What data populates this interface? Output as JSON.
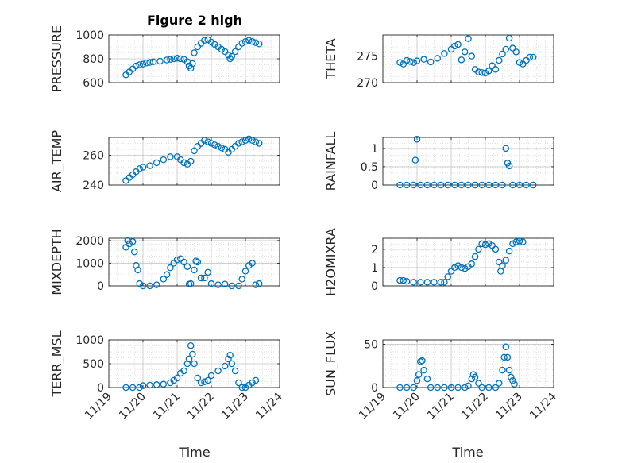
{
  "figure": {
    "title": "Figure 2 high",
    "xlabel": "Time"
  },
  "style": {
    "marker_color": "#0072BD",
    "grid_color": "#d9d9d9",
    "axis_color": "#262626"
  },
  "chart_data": [
    {
      "id": "pressure",
      "type": "scatter",
      "ylabel": "PRESSURE",
      "xlim": [
        "11/19",
        "11/24"
      ],
      "ylim": [
        600,
        1000
      ],
      "yticks": [
        600,
        800,
        1000
      ],
      "xticks": [
        "11/19",
        "11/20",
        "11/21",
        "11/22",
        "11/23",
        "11/24"
      ],
      "points": [
        [
          19.5,
          665
        ],
        [
          19.6,
          690
        ],
        [
          19.7,
          715
        ],
        [
          19.8,
          740
        ],
        [
          19.9,
          750
        ],
        [
          20.0,
          755
        ],
        [
          20.1,
          765
        ],
        [
          20.2,
          770
        ],
        [
          20.3,
          775
        ],
        [
          20.5,
          780
        ],
        [
          20.7,
          790
        ],
        [
          20.8,
          795
        ],
        [
          20.9,
          800
        ],
        [
          21.0,
          805
        ],
        [
          21.1,
          800
        ],
        [
          21.2,
          795
        ],
        [
          21.3,
          775
        ],
        [
          21.35,
          740
        ],
        [
          21.4,
          720
        ],
        [
          21.45,
          760
        ],
        [
          21.5,
          850
        ],
        [
          21.6,
          900
        ],
        [
          21.7,
          930
        ],
        [
          21.8,
          955
        ],
        [
          21.9,
          960
        ],
        [
          22.0,
          940
        ],
        [
          22.1,
          920
        ],
        [
          22.2,
          900
        ],
        [
          22.3,
          880
        ],
        [
          22.4,
          860
        ],
        [
          22.5,
          830
        ],
        [
          22.55,
          800
        ],
        [
          22.6,
          820
        ],
        [
          22.7,
          860
        ],
        [
          22.8,
          900
        ],
        [
          22.9,
          930
        ],
        [
          23.0,
          945
        ],
        [
          23.1,
          955
        ],
        [
          23.2,
          945
        ],
        [
          23.3,
          935
        ],
        [
          23.4,
          925
        ]
      ]
    },
    {
      "id": "theta",
      "type": "scatter",
      "ylabel": "THETA",
      "xlim": [
        "11/19",
        "11/24"
      ],
      "ylim": [
        270,
        279
      ],
      "yticks": [
        270,
        275
      ],
      "xticks": [
        "11/19",
        "11/20",
        "11/21",
        "11/22",
        "11/23",
        "11/24"
      ],
      "points": [
        [
          19.5,
          273.8
        ],
        [
          19.6,
          273.5
        ],
        [
          19.7,
          274.2
        ],
        [
          19.8,
          274.0
        ],
        [
          19.9,
          273.8
        ],
        [
          20.0,
          274.1
        ],
        [
          20.2,
          274.4
        ],
        [
          20.4,
          273.9
        ],
        [
          20.6,
          274.6
        ],
        [
          20.8,
          275.5
        ],
        [
          21.0,
          276.3
        ],
        [
          21.1,
          276.9
        ],
        [
          21.2,
          277.2
        ],
        [
          21.3,
          274.3
        ],
        [
          21.4,
          275.8
        ],
        [
          21.5,
          278.3
        ],
        [
          21.6,
          275.0
        ],
        [
          21.7,
          272.5
        ],
        [
          21.8,
          272.0
        ],
        [
          21.9,
          271.9
        ],
        [
          22.0,
          271.8
        ],
        [
          22.1,
          272.2
        ],
        [
          22.2,
          273.2
        ],
        [
          22.3,
          272.5
        ],
        [
          22.4,
          274.2
        ],
        [
          22.5,
          275.4
        ],
        [
          22.6,
          276.3
        ],
        [
          22.7,
          278.4
        ],
        [
          22.8,
          276.5
        ],
        [
          22.9,
          275.8
        ],
        [
          23.0,
          273.8
        ],
        [
          23.1,
          273.5
        ],
        [
          23.2,
          274.2
        ],
        [
          23.3,
          274.8
        ],
        [
          23.4,
          274.8
        ]
      ]
    },
    {
      "id": "air_temp",
      "type": "scatter",
      "ylabel": "AIR_TEMP",
      "xlim": [
        "11/19",
        "11/24"
      ],
      "ylim": [
        240,
        272
      ],
      "yticks": [
        240,
        260
      ],
      "xticks": [
        "11/19",
        "11/20",
        "11/21",
        "11/22",
        "11/23",
        "11/24"
      ],
      "points": [
        [
          19.5,
          243
        ],
        [
          19.6,
          245
        ],
        [
          19.7,
          247
        ],
        [
          19.8,
          249
        ],
        [
          19.9,
          251
        ],
        [
          20.0,
          252
        ],
        [
          20.2,
          253
        ],
        [
          20.4,
          255
        ],
        [
          20.6,
          257
        ],
        [
          20.8,
          259
        ],
        [
          21.0,
          259
        ],
        [
          21.1,
          257
        ],
        [
          21.2,
          255
        ],
        [
          21.3,
          254
        ],
        [
          21.4,
          256
        ],
        [
          21.5,
          263
        ],
        [
          21.6,
          266
        ],
        [
          21.7,
          268
        ],
        [
          21.8,
          270
        ],
        [
          21.9,
          269
        ],
        [
          22.0,
          268
        ],
        [
          22.1,
          267
        ],
        [
          22.2,
          266
        ],
        [
          22.3,
          265
        ],
        [
          22.4,
          264
        ],
        [
          22.5,
          262
        ],
        [
          22.6,
          264
        ],
        [
          22.7,
          266
        ],
        [
          22.8,
          268
        ],
        [
          22.9,
          269
        ],
        [
          23.0,
          270
        ],
        [
          23.1,
          271
        ],
        [
          23.2,
          270
        ],
        [
          23.3,
          269
        ],
        [
          23.4,
          268
        ]
      ]
    },
    {
      "id": "rainfall",
      "type": "scatter",
      "ylabel": "RAINFALL",
      "xlim": [
        "11/19",
        "11/24"
      ],
      "ylim": [
        0,
        1.3
      ],
      "yticks": [
        0,
        0.5,
        1
      ],
      "xticks": [
        "11/19",
        "11/20",
        "11/21",
        "11/22",
        "11/23",
        "11/24"
      ],
      "points": [
        [
          19.5,
          0
        ],
        [
          19.7,
          0
        ],
        [
          19.9,
          0
        ],
        [
          19.95,
          0.68
        ],
        [
          20.0,
          1.25
        ],
        [
          20.1,
          0
        ],
        [
          20.3,
          0
        ],
        [
          20.5,
          0
        ],
        [
          20.7,
          0
        ],
        [
          20.9,
          0
        ],
        [
          21.1,
          0
        ],
        [
          21.3,
          0
        ],
        [
          21.5,
          0
        ],
        [
          21.7,
          0
        ],
        [
          21.9,
          0
        ],
        [
          22.1,
          0
        ],
        [
          22.3,
          0
        ],
        [
          22.5,
          0
        ],
        [
          22.6,
          1.0
        ],
        [
          22.65,
          0.6
        ],
        [
          22.7,
          0.52
        ],
        [
          22.8,
          0
        ],
        [
          23.0,
          0
        ],
        [
          23.2,
          0
        ],
        [
          23.4,
          0
        ]
      ]
    },
    {
      "id": "mixdepth",
      "type": "scatter",
      "ylabel": "MIXDEPTH",
      "xlim": [
        "11/19",
        "11/24"
      ],
      "ylim": [
        0,
        2100
      ],
      "yticks": [
        0,
        1000,
        2000
      ],
      "xticks": [
        "11/19",
        "11/20",
        "11/21",
        "11/22",
        "11/23",
        "11/24"
      ],
      "points": [
        [
          19.5,
          1700
        ],
        [
          19.55,
          2000
        ],
        [
          19.6,
          1850
        ],
        [
          19.7,
          1950
        ],
        [
          19.75,
          1500
        ],
        [
          19.8,
          900
        ],
        [
          19.85,
          700
        ],
        [
          19.9,
          100
        ],
        [
          20.0,
          0
        ],
        [
          20.2,
          0
        ],
        [
          20.4,
          50
        ],
        [
          20.6,
          300
        ],
        [
          20.7,
          500
        ],
        [
          20.8,
          800
        ],
        [
          20.9,
          1000
        ],
        [
          21.0,
          1150
        ],
        [
          21.1,
          1200
        ],
        [
          21.2,
          1050
        ],
        [
          21.3,
          850
        ],
        [
          21.35,
          80
        ],
        [
          21.4,
          100
        ],
        [
          21.5,
          700
        ],
        [
          21.55,
          1100
        ],
        [
          21.6,
          1050
        ],
        [
          21.7,
          350
        ],
        [
          21.8,
          350
        ],
        [
          21.9,
          600
        ],
        [
          22.0,
          100
        ],
        [
          22.2,
          50
        ],
        [
          22.4,
          80
        ],
        [
          22.6,
          0
        ],
        [
          22.8,
          0
        ],
        [
          22.9,
          300
        ],
        [
          23.0,
          650
        ],
        [
          23.1,
          900
        ],
        [
          23.2,
          1000
        ],
        [
          23.3,
          50
        ],
        [
          23.4,
          100
        ]
      ]
    },
    {
      "id": "h2omixra",
      "type": "scatter",
      "ylabel": "H2OMIXRA",
      "xlim": [
        "11/19",
        "11/24"
      ],
      "ylim": [
        0,
        2.6
      ],
      "yticks": [
        0,
        1,
        2
      ],
      "xticks": [
        "11/19",
        "11/20",
        "11/21",
        "11/22",
        "11/23",
        "11/24"
      ],
      "points": [
        [
          19.5,
          0.3
        ],
        [
          19.6,
          0.3
        ],
        [
          19.7,
          0.25
        ],
        [
          19.9,
          0.2
        ],
        [
          20.1,
          0.2
        ],
        [
          20.3,
          0.2
        ],
        [
          20.5,
          0.2
        ],
        [
          20.7,
          0.2
        ],
        [
          20.8,
          0.2
        ],
        [
          20.9,
          0.5
        ],
        [
          21.0,
          0.8
        ],
        [
          21.1,
          1.0
        ],
        [
          21.2,
          1.1
        ],
        [
          21.3,
          1.0
        ],
        [
          21.4,
          0.95
        ],
        [
          21.5,
          1.05
        ],
        [
          21.6,
          1.2
        ],
        [
          21.7,
          1.6
        ],
        [
          21.8,
          2.0
        ],
        [
          21.9,
          2.3
        ],
        [
          22.0,
          2.25
        ],
        [
          22.1,
          2.3
        ],
        [
          22.2,
          2.2
        ],
        [
          22.3,
          2.0
        ],
        [
          22.4,
          1.3
        ],
        [
          22.45,
          0.8
        ],
        [
          22.5,
          1.1
        ],
        [
          22.6,
          1.4
        ],
        [
          22.7,
          1.9
        ],
        [
          22.8,
          2.3
        ],
        [
          22.9,
          2.4
        ],
        [
          23.0,
          2.45
        ],
        [
          23.1,
          2.4
        ]
      ]
    },
    {
      "id": "terr_msl",
      "type": "scatter",
      "ylabel": "TERR_MSL",
      "xlim": [
        "11/19",
        "11/24"
      ],
      "ylim": [
        0,
        1000
      ],
      "yticks": [
        0,
        500,
        1000
      ],
      "xticks": [
        "11/19",
        "11/20",
        "11/21",
        "11/22",
        "11/23",
        "11/24"
      ],
      "points": [
        [
          19.5,
          0
        ],
        [
          19.7,
          0
        ],
        [
          19.9,
          0
        ],
        [
          20.0,
          40
        ],
        [
          20.2,
          50
        ],
        [
          20.4,
          60
        ],
        [
          20.6,
          70
        ],
        [
          20.8,
          100
        ],
        [
          20.9,
          150
        ],
        [
          21.0,
          200
        ],
        [
          21.1,
          300
        ],
        [
          21.2,
          350
        ],
        [
          21.3,
          500
        ],
        [
          21.35,
          600
        ],
        [
          21.4,
          880
        ],
        [
          21.45,
          700
        ],
        [
          21.5,
          500
        ],
        [
          21.6,
          200
        ],
        [
          21.7,
          100
        ],
        [
          21.8,
          120
        ],
        [
          21.9,
          150
        ],
        [
          22.0,
          250
        ],
        [
          22.2,
          350
        ],
        [
          22.4,
          450
        ],
        [
          22.5,
          600
        ],
        [
          22.55,
          680
        ],
        [
          22.6,
          500
        ],
        [
          22.7,
          350
        ],
        [
          22.8,
          100
        ],
        [
          22.9,
          0
        ],
        [
          23.0,
          0
        ],
        [
          23.1,
          50
        ],
        [
          23.2,
          100
        ],
        [
          23.3,
          150
        ]
      ]
    },
    {
      "id": "sun_flux",
      "type": "scatter",
      "ylabel": "SUN_FLUX",
      "xlim": [
        "11/19",
        "11/24"
      ],
      "ylim": [
        0,
        55
      ],
      "yticks": [
        0,
        50
      ],
      "xticks": [
        "11/19",
        "11/20",
        "11/21",
        "11/22",
        "11/23",
        "11/24"
      ],
      "points": [
        [
          19.5,
          0
        ],
        [
          19.7,
          0
        ],
        [
          19.9,
          0
        ],
        [
          20.0,
          8
        ],
        [
          20.05,
          15
        ],
        [
          20.1,
          30
        ],
        [
          20.15,
          31
        ],
        [
          20.2,
          20
        ],
        [
          20.3,
          10
        ],
        [
          20.4,
          0
        ],
        [
          20.6,
          0
        ],
        [
          20.8,
          0
        ],
        [
          21.0,
          0
        ],
        [
          21.2,
          0
        ],
        [
          21.4,
          0
        ],
        [
          21.5,
          2
        ],
        [
          21.6,
          10
        ],
        [
          21.65,
          15
        ],
        [
          21.7,
          12
        ],
        [
          21.8,
          5
        ],
        [
          21.9,
          0
        ],
        [
          22.1,
          0
        ],
        [
          22.3,
          0
        ],
        [
          22.4,
          5
        ],
        [
          22.5,
          20
        ],
        [
          22.55,
          35
        ],
        [
          22.6,
          47
        ],
        [
          22.65,
          35
        ],
        [
          22.7,
          20
        ],
        [
          22.75,
          12
        ],
        [
          22.8,
          8
        ],
        [
          22.85,
          4
        ]
      ]
    }
  ]
}
